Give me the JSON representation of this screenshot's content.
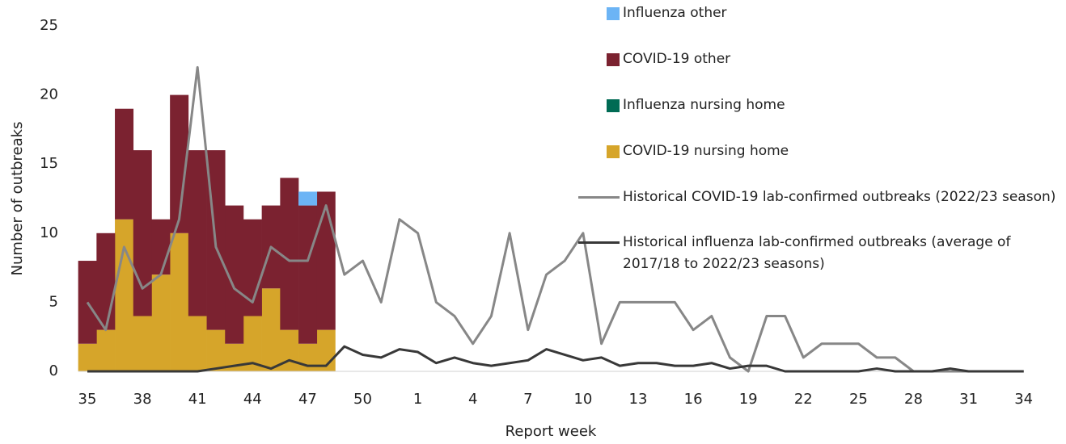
{
  "chart_data": {
    "type": "bar",
    "y_label": "Number of outbreaks",
    "x_label": "Report week",
    "categories": [
      "35",
      null,
      null,
      "38",
      null,
      null,
      "41",
      null,
      null,
      "44",
      null,
      null,
      "47",
      null,
      null,
      "50",
      null,
      null,
      "1",
      null,
      null,
      "4",
      null,
      null,
      "7",
      null,
      null,
      "10",
      null,
      null,
      "13",
      null,
      null,
      "16",
      null,
      null,
      "19",
      null,
      null,
      "22",
      null,
      null,
      "25",
      null,
      null,
      "28",
      null,
      null,
      "31",
      null,
      null,
      "34"
    ],
    "ylim": [
      0,
      25
    ],
    "yticks": [
      0,
      5,
      10,
      15,
      20,
      25
    ],
    "series": [
      {
        "name": "Influenza other",
        "kind": "bar",
        "color": "#6cb4f5",
        "values": [
          0,
          0,
          0,
          0,
          0,
          0,
          0,
          0,
          0,
          0,
          0,
          0,
          1,
          0,
          null,
          null,
          null,
          null,
          null,
          null,
          null,
          null,
          null,
          null,
          null,
          null,
          null,
          null,
          null,
          null,
          null,
          null,
          null,
          null,
          null,
          null,
          null,
          null,
          null,
          null,
          null,
          null,
          null,
          null,
          null,
          null,
          null,
          null,
          null,
          null,
          null,
          null
        ]
      },
      {
        "name": "COVID-19 other",
        "kind": "bar",
        "color": "#7b2230",
        "values": [
          6,
          7,
          8,
          12,
          4,
          10,
          12,
          13,
          10,
          7,
          6,
          11,
          10,
          10,
          null,
          null,
          null,
          null,
          null,
          null,
          null,
          null,
          null,
          null,
          null,
          null,
          null,
          null,
          null,
          null,
          null,
          null,
          null,
          null,
          null,
          null,
          null,
          null,
          null,
          null,
          null,
          null,
          null,
          null,
          null,
          null,
          null,
          null,
          null,
          null,
          null,
          null
        ]
      },
      {
        "name": "Influenza nursing home",
        "kind": "bar",
        "color": "#006b54",
        "values": [
          0,
          0,
          0,
          0,
          0,
          0,
          0,
          0,
          0,
          0,
          0,
          0,
          0,
          0,
          null,
          null,
          null,
          null,
          null,
          null,
          null,
          null,
          null,
          null,
          null,
          null,
          null,
          null,
          null,
          null,
          null,
          null,
          null,
          null,
          null,
          null,
          null,
          null,
          null,
          null,
          null,
          null,
          null,
          null,
          null,
          null,
          null,
          null,
          null,
          null,
          null,
          null
        ]
      },
      {
        "name": "COVID-19 nursing home",
        "kind": "bar",
        "color": "#d6a52a",
        "values": [
          2,
          3,
          11,
          4,
          7,
          10,
          4,
          3,
          2,
          4,
          6,
          3,
          2,
          3,
          null,
          null,
          null,
          null,
          null,
          null,
          null,
          null,
          null,
          null,
          null,
          null,
          null,
          null,
          null,
          null,
          null,
          null,
          null,
          null,
          null,
          null,
          null,
          null,
          null,
          null,
          null,
          null,
          null,
          null,
          null,
          null,
          null,
          null,
          null,
          null,
          null,
          null
        ]
      },
      {
        "name": "Historical COVID-19 lab-confirmed outbreaks (2022/23 season)",
        "kind": "line",
        "color": "#878787",
        "values": [
          5,
          3,
          9,
          6,
          7,
          11,
          22,
          9,
          6,
          5,
          9,
          8,
          8,
          12,
          7,
          8,
          5,
          11,
          10,
          5,
          4,
          2,
          4,
          10,
          3,
          7,
          8,
          10,
          2,
          5,
          5,
          5,
          5,
          3,
          4,
          1,
          0,
          4,
          4,
          1,
          2,
          2,
          2,
          1,
          1,
          0,
          0,
          0,
          0,
          0,
          0,
          0
        ]
      },
      {
        "name": "Historical influenza lab-confirmed outbreaks (average of 2017/18 to 2022/23 seasons)",
        "kind": "line",
        "color": "#383838",
        "values": [
          0,
          0,
          0,
          0,
          0,
          0,
          0,
          0.2,
          0.4,
          0.6,
          0.2,
          0.8,
          0.4,
          0.4,
          1.8,
          1.2,
          1.0,
          1.6,
          1.4,
          0.6,
          1.0,
          0.6,
          0.4,
          0.6,
          0.8,
          1.6,
          1.2,
          0.8,
          1.0,
          0.4,
          0.6,
          0.6,
          0.4,
          0.4,
          0.6,
          0.2,
          0.4,
          0.4,
          0,
          0,
          0,
          0,
          0,
          0.2,
          0,
          0,
          0,
          0.2,
          0,
          0,
          0,
          0
        ]
      }
    ]
  }
}
